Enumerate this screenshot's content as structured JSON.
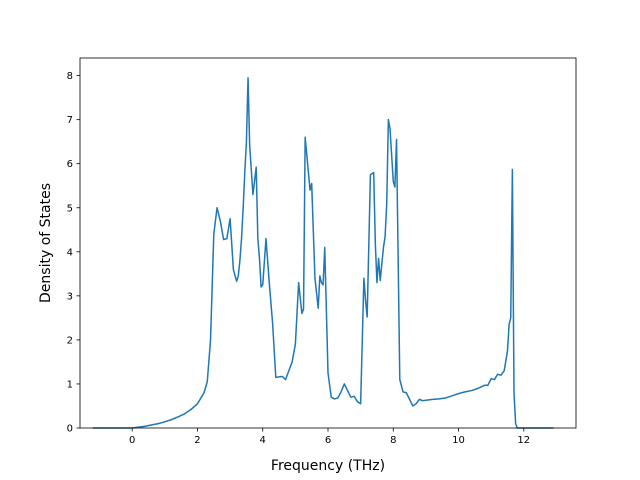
{
  "chart_data": {
    "type": "line",
    "title": "",
    "xlabel": "Frequency (THz)",
    "ylabel": "Density of States",
    "xlim": [
      -1.6,
      13.6
    ],
    "ylim": [
      0,
      8.4
    ],
    "xticks": [
      0,
      2,
      4,
      6,
      8,
      10,
      12
    ],
    "yticks": [
      0,
      1,
      2,
      3,
      4,
      5,
      6,
      7,
      8
    ],
    "xtick_labels": [
      "0",
      "2",
      "4",
      "6",
      "8",
      "10",
      "12"
    ],
    "ytick_labels": [
      "0",
      "1",
      "2",
      "3",
      "4",
      "5",
      "6",
      "7",
      "8"
    ],
    "grid": false,
    "legend": "none",
    "line_color": "#1f77b4",
    "series": [
      {
        "x": [
          -1.2,
          0.0,
          0.2,
          0.4,
          0.6,
          0.8,
          1.0,
          1.2,
          1.4,
          1.6,
          1.8,
          2.0,
          2.2,
          2.3,
          2.4,
          2.5,
          2.6,
          2.7,
          2.8,
          2.9,
          3.0,
          3.1,
          3.2,
          3.25,
          3.3,
          3.35,
          3.4,
          3.45,
          3.5,
          3.55,
          3.6,
          3.7,
          3.8,
          3.85,
          3.9,
          3.95,
          4.0,
          4.1,
          4.2,
          4.3,
          4.4,
          4.5,
          4.6,
          4.7,
          4.8,
          4.9,
          5.0,
          5.1,
          5.15,
          5.2,
          5.25,
          5.3,
          5.4,
          5.45,
          5.5,
          5.6,
          5.7,
          5.75,
          5.8,
          5.85,
          5.9,
          6.0,
          6.1,
          6.2,
          6.3,
          6.4,
          6.5,
          6.6,
          6.7,
          6.8,
          6.9,
          7.0,
          7.1,
          7.15,
          7.2,
          7.3,
          7.4,
          7.45,
          7.5,
          7.55,
          7.6,
          7.7,
          7.75,
          7.8,
          7.85,
          7.9,
          8.0,
          8.05,
          8.1,
          8.2,
          8.3,
          8.4,
          8.5,
          8.6,
          8.7,
          8.8,
          8.9,
          9.0,
          9.2,
          9.4,
          9.6,
          9.8,
          10.0,
          10.2,
          10.4,
          10.6,
          10.8,
          10.9,
          11.0,
          11.1,
          11.2,
          11.3,
          11.4,
          11.5,
          11.55,
          11.6,
          11.65,
          11.7,
          11.75,
          11.8,
          11.9,
          12.2,
          12.9
        ],
        "y": [
          0,
          0,
          0.02,
          0.04,
          0.07,
          0.1,
          0.14,
          0.19,
          0.25,
          0.32,
          0.42,
          0.55,
          0.8,
          1.05,
          2.0,
          4.4,
          5.0,
          4.7,
          4.28,
          4.3,
          4.75,
          3.6,
          3.33,
          3.45,
          3.8,
          4.3,
          5.0,
          5.8,
          6.5,
          7.95,
          6.4,
          5.3,
          5.92,
          4.3,
          3.85,
          3.2,
          3.25,
          4.3,
          3.3,
          2.4,
          1.15,
          1.16,
          1.17,
          1.1,
          1.3,
          1.5,
          1.9,
          3.3,
          2.95,
          2.6,
          2.7,
          6.6,
          5.8,
          5.4,
          5.55,
          3.4,
          2.72,
          3.45,
          3.3,
          3.25,
          4.1,
          1.25,
          0.7,
          0.66,
          0.68,
          0.82,
          1.0,
          0.85,
          0.7,
          0.72,
          0.6,
          0.55,
          3.4,
          2.9,
          2.52,
          5.75,
          5.8,
          4.2,
          3.3,
          3.85,
          3.35,
          4.1,
          4.35,
          5.1,
          7.0,
          6.8,
          5.6,
          5.47,
          6.55,
          1.1,
          0.82,
          0.8,
          0.65,
          0.5,
          0.55,
          0.65,
          0.62,
          0.63,
          0.65,
          0.66,
          0.68,
          0.73,
          0.78,
          0.82,
          0.85,
          0.9,
          0.97,
          0.97,
          1.12,
          1.1,
          1.22,
          1.2,
          1.3,
          1.75,
          2.35,
          2.5,
          5.87,
          0.8,
          0.1,
          0,
          0,
          0,
          0
        ]
      }
    ]
  }
}
